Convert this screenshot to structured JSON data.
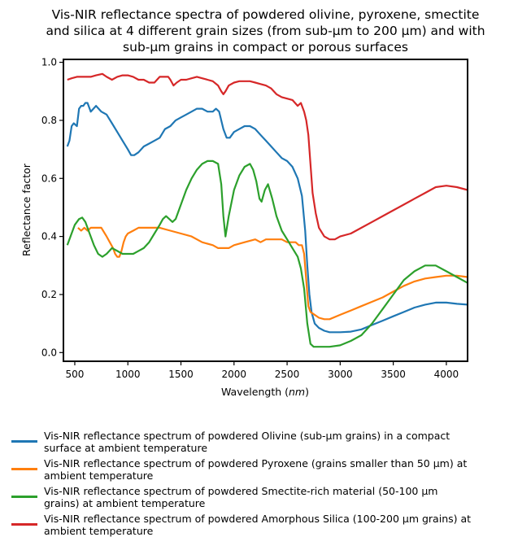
{
  "chart_data": {
    "type": "line",
    "title_lines": [
      "Vis-NIR reflectance spectra of powdered olivine, pyroxene, smectite",
      "and silica at 4 different grain sizes (from sub-µm to 200 µm) and with",
      "sub-µm grains in compact or porous surfaces"
    ],
    "title": "Vis-NIR reflectance spectra of powdered olivine, pyroxene, smectite and silica at 4 different grain sizes (from sub-µm to 200 µm) and with sub-µm grains in compact or porous surfaces",
    "xlabel": "Wavelength (nm)",
    "ylabel": "Reflectance factor",
    "xlim": [
      393,
      4200
    ],
    "ylim": [
      -0.03,
      1.01
    ],
    "xticks": [
      500,
      1000,
      1500,
      2000,
      2500,
      3000,
      3500,
      4000
    ],
    "yticks": [
      0.0,
      0.2,
      0.4,
      0.6,
      0.8,
      1.0
    ],
    "xtick_labels": [
      "500",
      "1000",
      "1500",
      "2000",
      "2500",
      "3000",
      "3500",
      "4000"
    ],
    "ytick_labels": [
      "0.0",
      "0.2",
      "0.4",
      "0.6",
      "0.8",
      "1.0"
    ],
    "grid": false,
    "legend_position": "below",
    "series": [
      {
        "name": "Vis-NIR reflectance spectrum of powdered Olivine (sub-µm grains) in a compact surface at ambient temperature",
        "color": "#1f77b4",
        "x": [
          430,
          450,
          470,
          490,
          520,
          540,
          560,
          580,
          600,
          620,
          650,
          700,
          750,
          800,
          850,
          900,
          950,
          1000,
          1030,
          1060,
          1100,
          1150,
          1200,
          1250,
          1300,
          1350,
          1400,
          1450,
          1500,
          1550,
          1600,
          1650,
          1700,
          1750,
          1800,
          1830,
          1860,
          1900,
          1930,
          1960,
          2000,
          2050,
          2100,
          2150,
          2200,
          2250,
          2300,
          2350,
          2400,
          2450,
          2500,
          2550,
          2600,
          2640,
          2670,
          2690,
          2710,
          2730,
          2760,
          2800,
          2850,
          2900,
          2950,
          3000,
          3100,
          3200,
          3300,
          3400,
          3500,
          3600,
          3700,
          3800,
          3900,
          4000,
          4100,
          4200
        ],
        "y": [
          0.71,
          0.73,
          0.78,
          0.79,
          0.78,
          0.84,
          0.85,
          0.85,
          0.86,
          0.86,
          0.83,
          0.85,
          0.83,
          0.82,
          0.79,
          0.76,
          0.73,
          0.7,
          0.68,
          0.68,
          0.69,
          0.71,
          0.72,
          0.73,
          0.74,
          0.77,
          0.78,
          0.8,
          0.81,
          0.82,
          0.83,
          0.84,
          0.84,
          0.83,
          0.83,
          0.84,
          0.83,
          0.77,
          0.74,
          0.74,
          0.76,
          0.77,
          0.78,
          0.78,
          0.77,
          0.75,
          0.73,
          0.71,
          0.69,
          0.67,
          0.66,
          0.64,
          0.6,
          0.54,
          0.42,
          0.3,
          0.2,
          0.14,
          0.1,
          0.085,
          0.075,
          0.07,
          0.07,
          0.07,
          0.072,
          0.08,
          0.095,
          0.11,
          0.125,
          0.14,
          0.155,
          0.165,
          0.172,
          0.172,
          0.168,
          0.165
        ]
      },
      {
        "name": "Vis-NIR reflectance spectrum of powdered Pyroxene (grains smaller than 50 µm) at ambient temperature",
        "color": "#ff7f0e",
        "x": [
          530,
          560,
          590,
          620,
          650,
          700,
          750,
          800,
          830,
          860,
          880,
          900,
          920,
          940,
          960,
          980,
          1000,
          1050,
          1100,
          1150,
          1200,
          1300,
          1400,
          1500,
          1600,
          1700,
          1800,
          1850,
          1900,
          1950,
          2000,
          2100,
          2200,
          2250,
          2300,
          2350,
          2400,
          2450,
          2500,
          2540,
          2580,
          2610,
          2640,
          2660,
          2680,
          2700,
          2720,
          2760,
          2800,
          2850,
          2900,
          3000,
          3100,
          3200,
          3300,
          3400,
          3500,
          3600,
          3700,
          3800,
          3900,
          4000,
          4100,
          4200
        ],
        "y": [
          0.43,
          0.42,
          0.43,
          0.42,
          0.43,
          0.43,
          0.43,
          0.4,
          0.38,
          0.36,
          0.34,
          0.33,
          0.33,
          0.35,
          0.38,
          0.4,
          0.41,
          0.42,
          0.43,
          0.43,
          0.43,
          0.43,
          0.42,
          0.41,
          0.4,
          0.38,
          0.37,
          0.36,
          0.36,
          0.36,
          0.37,
          0.38,
          0.39,
          0.38,
          0.39,
          0.39,
          0.39,
          0.39,
          0.38,
          0.38,
          0.38,
          0.37,
          0.37,
          0.34,
          0.25,
          0.16,
          0.14,
          0.13,
          0.12,
          0.115,
          0.115,
          0.13,
          0.145,
          0.16,
          0.175,
          0.19,
          0.21,
          0.23,
          0.245,
          0.255,
          0.26,
          0.265,
          0.265,
          0.26
        ]
      },
      {
        "name": "Vis-NIR reflectance spectrum of powdered Smectite-rich material (50-100 µm grains) at ambient temperature",
        "color": "#2ca02c",
        "x": [
          430,
          460,
          500,
          540,
          570,
          600,
          640,
          680,
          720,
          760,
          800,
          850,
          900,
          950,
          1000,
          1050,
          1100,
          1150,
          1200,
          1250,
          1300,
          1330,
          1360,
          1390,
          1420,
          1450,
          1500,
          1550,
          1600,
          1650,
          1700,
          1750,
          1800,
          1850,
          1880,
          1900,
          1920,
          1950,
          2000,
          2050,
          2100,
          2150,
          2180,
          2210,
          2240,
          2260,
          2290,
          2320,
          2360,
          2400,
          2450,
          2500,
          2550,
          2600,
          2630,
          2660,
          2690,
          2720,
          2750,
          2800,
          2850,
          2900,
          3000,
          3100,
          3200,
          3300,
          3400,
          3500,
          3600,
          3700,
          3800,
          3900,
          4000,
          4100,
          4200
        ],
        "y": [
          0.37,
          0.4,
          0.44,
          0.46,
          0.465,
          0.45,
          0.41,
          0.37,
          0.34,
          0.33,
          0.34,
          0.36,
          0.35,
          0.34,
          0.34,
          0.34,
          0.35,
          0.36,
          0.38,
          0.41,
          0.44,
          0.46,
          0.47,
          0.46,
          0.45,
          0.46,
          0.51,
          0.56,
          0.6,
          0.63,
          0.65,
          0.66,
          0.66,
          0.65,
          0.58,
          0.47,
          0.4,
          0.47,
          0.56,
          0.61,
          0.64,
          0.65,
          0.63,
          0.59,
          0.53,
          0.52,
          0.56,
          0.58,
          0.53,
          0.47,
          0.42,
          0.39,
          0.36,
          0.33,
          0.29,
          0.22,
          0.1,
          0.03,
          0.02,
          0.02,
          0.02,
          0.02,
          0.025,
          0.04,
          0.06,
          0.1,
          0.15,
          0.2,
          0.25,
          0.28,
          0.3,
          0.3,
          0.28,
          0.26,
          0.24
        ]
      },
      {
        "name": "Vis-NIR reflectance spectrum of powdered Amorphous Silica (100-200 µm grains) at ambient temperature",
        "color": "#d62728",
        "x": [
          430,
          470,
          520,
          600,
          650,
          700,
          760,
          800,
          850,
          900,
          950,
          1000,
          1050,
          1100,
          1150,
          1200,
          1250,
          1300,
          1350,
          1380,
          1400,
          1430,
          1460,
          1500,
          1550,
          1600,
          1650,
          1700,
          1750,
          1800,
          1850,
          1880,
          1900,
          1920,
          1950,
          2000,
          2050,
          2100,
          2150,
          2200,
          2250,
          2300,
          2350,
          2400,
          2450,
          2500,
          2550,
          2600,
          2630,
          2660,
          2680,
          2700,
          2720,
          2740,
          2770,
          2800,
          2850,
          2900,
          2950,
          3000,
          3100,
          3200,
          3300,
          3400,
          3500,
          3600,
          3700,
          3800,
          3900,
          4000,
          4100,
          4200
        ],
        "y": [
          0.94,
          0.945,
          0.95,
          0.95,
          0.95,
          0.955,
          0.96,
          0.95,
          0.94,
          0.95,
          0.955,
          0.955,
          0.95,
          0.94,
          0.94,
          0.93,
          0.93,
          0.95,
          0.95,
          0.95,
          0.94,
          0.92,
          0.93,
          0.94,
          0.94,
          0.945,
          0.95,
          0.945,
          0.94,
          0.935,
          0.92,
          0.9,
          0.89,
          0.9,
          0.92,
          0.93,
          0.935,
          0.935,
          0.935,
          0.93,
          0.925,
          0.92,
          0.91,
          0.89,
          0.88,
          0.875,
          0.87,
          0.85,
          0.86,
          0.83,
          0.8,
          0.75,
          0.65,
          0.55,
          0.48,
          0.43,
          0.4,
          0.39,
          0.39,
          0.4,
          0.41,
          0.43,
          0.45,
          0.47,
          0.49,
          0.51,
          0.53,
          0.55,
          0.57,
          0.575,
          0.57,
          0.56
        ]
      }
    ]
  },
  "legend": {
    "items": [
      {
        "line1": "Vis-NIR reflectance spectrum of powdered Olivine (sub-µm grains) in a compact",
        "line2": "surface at ambient temperature",
        "color": "#1f77b4"
      },
      {
        "line1": "Vis-NIR reflectance spectrum of powdered Pyroxene (grains smaller than 50 µm) at",
        "line2": "ambient temperature",
        "color": "#ff7f0e"
      },
      {
        "line1": "Vis-NIR reflectance spectrum of powdered Smectite-rich material (50-100 µm",
        "line2": "grains) at ambient temperature",
        "color": "#2ca02c"
      },
      {
        "line1": "Vis-NIR reflectance spectrum of powdered Amorphous Silica (100-200 µm grains) at",
        "line2": "ambient temperature",
        "color": "#d62728"
      }
    ]
  }
}
